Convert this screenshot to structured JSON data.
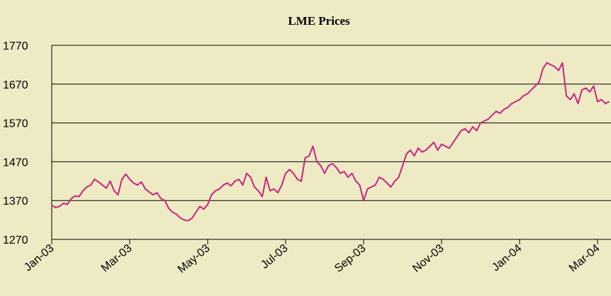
{
  "chart_data": {
    "type": "line",
    "title": "LME Prices",
    "categories": [
      "Jan-03",
      null,
      null,
      null,
      null,
      null,
      null,
      null,
      null,
      null,
      null,
      null,
      null,
      null,
      null,
      null,
      null,
      null,
      null,
      null,
      "Mar-03",
      null,
      null,
      null,
      null,
      null,
      null,
      null,
      null,
      null,
      null,
      null,
      null,
      null,
      null,
      null,
      null,
      null,
      null,
      null,
      "May-03",
      null,
      null,
      null,
      null,
      null,
      null,
      null,
      null,
      null,
      null,
      null,
      null,
      null,
      null,
      null,
      null,
      null,
      null,
      null,
      "Jul-03",
      null,
      null,
      null,
      null,
      null,
      null,
      null,
      null,
      null,
      null,
      null,
      null,
      null,
      null,
      null,
      null,
      null,
      null,
      null,
      "Sep-03",
      null,
      null,
      null,
      null,
      null,
      null,
      null,
      null,
      null,
      null,
      null,
      null,
      null,
      null,
      null,
      null,
      null,
      null,
      null,
      "Nov-03",
      null,
      null,
      null,
      null,
      null,
      null,
      null,
      null,
      null,
      null,
      null,
      null,
      null,
      null,
      null,
      null,
      null,
      null,
      null,
      "Jan-04",
      null,
      null,
      null,
      null,
      null,
      null,
      null,
      null,
      null,
      null,
      null,
      null,
      null,
      null,
      null,
      null,
      null,
      null,
      null,
      "Mar-04",
      null,
      null,
      null
    ],
    "series": [
      {
        "color": "#c8257c",
        "values": [
          1358,
          1352,
          1355,
          1363,
          1360,
          1375,
          1382,
          1380,
          1395,
          1405,
          1410,
          1425,
          1418,
          1410,
          1402,
          1420,
          1395,
          1385,
          1425,
          1438,
          1425,
          1415,
          1410,
          1418,
          1400,
          1392,
          1385,
          1390,
          1375,
          1370,
          1350,
          1340,
          1335,
          1325,
          1320,
          1318,
          1325,
          1340,
          1355,
          1348,
          1360,
          1385,
          1395,
          1400,
          1410,
          1415,
          1408,
          1420,
          1425,
          1410,
          1440,
          1430,
          1405,
          1395,
          1380,
          1430,
          1395,
          1400,
          1390,
          1410,
          1440,
          1450,
          1440,
          1425,
          1420,
          1480,
          1485,
          1510,
          1470,
          1460,
          1440,
          1460,
          1465,
          1455,
          1440,
          1445,
          1430,
          1440,
          1420,
          1410,
          1370,
          1400,
          1405,
          1410,
          1430,
          1425,
          1415,
          1405,
          1420,
          1430,
          1460,
          1490,
          1500,
          1485,
          1505,
          1495,
          1500,
          1510,
          1520,
          1500,
          1515,
          1510,
          1505,
          1520,
          1535,
          1550,
          1555,
          1545,
          1560,
          1550,
          1570,
          1575,
          1580,
          1590,
          1600,
          1595,
          1605,
          1610,
          1620,
          1625,
          1630,
          1640,
          1645,
          1655,
          1665,
          1675,
          1710,
          1725,
          1720,
          1715,
          1705,
          1725,
          1640,
          1630,
          1645,
          1620,
          1655,
          1660,
          1650,
          1665,
          1625,
          1630,
          1620,
          1625
        ]
      }
    ],
    "ylim": [
      1270,
      1770
    ],
    "yticks": [
      1270,
      1370,
      1470,
      1570,
      1670,
      1770
    ],
    "grid": true
  }
}
